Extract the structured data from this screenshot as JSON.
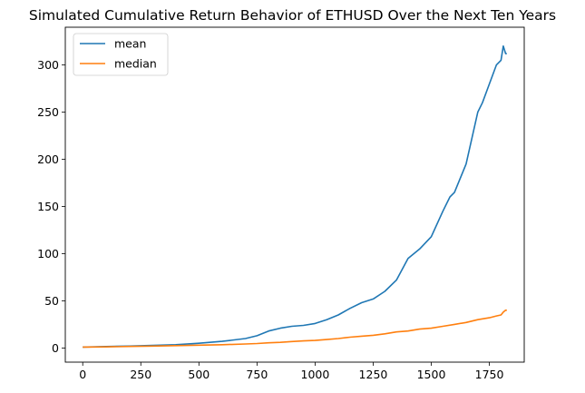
{
  "chart_data": {
    "type": "line",
    "title": "Simulated Cumulative Return Behavior of ETHUSD Over the Next Ten Years",
    "xlabel": "",
    "ylabel": "",
    "xlim": [
      -75,
      1900
    ],
    "ylim": [
      -15,
      340
    ],
    "xticks": [
      0,
      250,
      500,
      750,
      1000,
      1250,
      1500,
      1750
    ],
    "yticks": [
      0,
      50,
      100,
      150,
      200,
      250,
      300
    ],
    "grid": false,
    "legend_position": "upper left",
    "series": [
      {
        "name": "mean",
        "color": "#1f77b4",
        "x": [
          0,
          100,
          200,
          300,
          400,
          500,
          600,
          700,
          750,
          800,
          850,
          900,
          950,
          1000,
          1050,
          1100,
          1150,
          1200,
          1250,
          1300,
          1350,
          1400,
          1450,
          1500,
          1550,
          1580,
          1600,
          1650,
          1700,
          1720,
          1750,
          1780,
          1800,
          1810,
          1820,
          1825
        ],
        "y": [
          1,
          1.5,
          2,
          2.8,
          3.5,
          5,
          7,
          10,
          13,
          18,
          21,
          23,
          24,
          26,
          30,
          35,
          42,
          48,
          52,
          60,
          72,
          95,
          105,
          118,
          145,
          160,
          165,
          195,
          250,
          260,
          280,
          300,
          305,
          320,
          312,
          312
        ]
      },
      {
        "name": "median",
        "color": "#ff7f0e",
        "x": [
          0,
          100,
          200,
          300,
          400,
          500,
          600,
          700,
          750,
          800,
          850,
          900,
          950,
          1000,
          1050,
          1100,
          1150,
          1200,
          1250,
          1300,
          1350,
          1400,
          1450,
          1500,
          1550,
          1600,
          1650,
          1700,
          1750,
          1780,
          1800,
          1810,
          1820,
          1825
        ],
        "y": [
          1,
          1.2,
          1.6,
          2,
          2.5,
          3,
          3.5,
          4.2,
          4.7,
          5.5,
          6,
          6.8,
          7.5,
          8,
          9,
          10,
          11.5,
          12.5,
          13.5,
          15,
          17,
          18,
          20,
          21,
          23,
          25,
          27,
          30,
          32,
          34,
          35,
          38,
          40,
          40
        ]
      }
    ]
  }
}
